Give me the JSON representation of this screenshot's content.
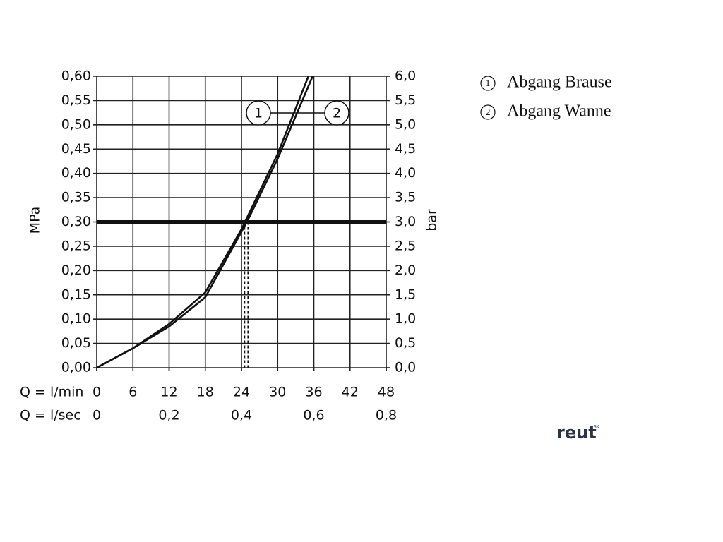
{
  "chart_data": {
    "type": "line",
    "x_label": "Q = l/min",
    "x2_label": "Q = l/sec",
    "y_label": "MPa",
    "y2_label": "bar",
    "xlim": [
      0,
      48
    ],
    "xticks": [
      0,
      6,
      12,
      18,
      24,
      30,
      36,
      42,
      48
    ],
    "x2lim": [
      0,
      0.8
    ],
    "x2ticks": [
      0,
      {
        "value": 0.2,
        "label": "0,2"
      },
      {
        "value": 0.4,
        "label": "0,4"
      },
      {
        "value": 0.6,
        "label": "0,6"
      },
      {
        "value": 0.8,
        "label": "0,8"
      }
    ],
    "ylim": [
      0,
      0.6
    ],
    "yticks": [
      {
        "value": 0,
        "label": "0,00"
      },
      {
        "value": 0.05,
        "label": "0,05"
      },
      {
        "value": 0.1,
        "label": "0,10"
      },
      {
        "value": 0.15,
        "label": "0,15"
      },
      {
        "value": 0.2,
        "label": "0,20"
      },
      {
        "value": 0.25,
        "label": "0,25"
      },
      {
        "value": 0.3,
        "label": "0,30"
      },
      {
        "value": 0.35,
        "label": "0,35"
      },
      {
        "value": 0.4,
        "label": "0,40"
      },
      {
        "value": 0.45,
        "label": "0,45"
      },
      {
        "value": 0.5,
        "label": "0,50"
      },
      {
        "value": 0.55,
        "label": "0,55"
      },
      {
        "value": 0.6,
        "label": "0,60"
      }
    ],
    "y2lim": [
      0,
      6
    ],
    "y2ticks": [
      {
        "value": 0,
        "label": "0,0"
      },
      {
        "value": 0.5,
        "label": "0,5"
      },
      {
        "value": 1,
        "label": "1,0"
      },
      {
        "value": 1.5,
        "label": "1,5"
      },
      {
        "value": 2,
        "label": "2,0"
      },
      {
        "value": 2.5,
        "label": "2,5"
      },
      {
        "value": 3,
        "label": "3,0"
      },
      {
        "value": 3.5,
        "label": "3,5"
      },
      {
        "value": 4,
        "label": "4,0"
      },
      {
        "value": 4.5,
        "label": "4,5"
      },
      {
        "value": 5,
        "label": "5,0"
      },
      {
        "value": 5.5,
        "label": "5,5"
      },
      {
        "value": 6,
        "label": "6,0"
      }
    ],
    "grid": true,
    "series": [
      {
        "name": "Abgang Brause",
        "label": "1",
        "color": "#111111",
        "x": [
          0,
          6,
          12,
          18,
          24,
          30,
          35.1
        ],
        "values": [
          0,
          0.04,
          0.09,
          0.155,
          0.285,
          0.44,
          0.6
        ]
      },
      {
        "name": "Abgang Wanne",
        "label": "2",
        "color": "#111111",
        "x": [
          0,
          6,
          12,
          18,
          24.9,
          30,
          35.8
        ],
        "values": [
          0,
          0.04,
          0.085,
          0.145,
          0.3,
          0.43,
          0.6
        ]
      }
    ],
    "reference_y": 0.3,
    "reference_x": [
      24.5,
      25.1
    ],
    "watermark": "reut",
    "watermark_sup": "SK"
  }
}
